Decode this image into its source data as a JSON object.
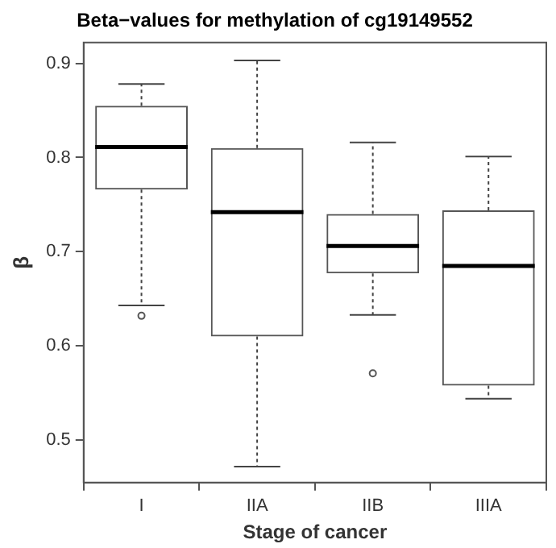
{
  "chart_data": {
    "type": "box",
    "title": "Beta−values for methylation of cg19149552",
    "xlabel": "Stage of cancer",
    "ylabel": "β",
    "categories": [
      "I",
      "IIA",
      "IIB",
      "IIIA"
    ],
    "ylim": [
      0.455,
      0.922
    ],
    "yticks": [
      0.5,
      0.6,
      0.7,
      0.8,
      0.9
    ],
    "grid": false,
    "legend": false,
    "boxes": [
      {
        "low": 0.643,
        "q1": 0.766,
        "median": 0.811,
        "q3": 0.855,
        "high": 0.878,
        "outliers": [
          0.632
        ]
      },
      {
        "low": 0.472,
        "q1": 0.61,
        "median": 0.742,
        "q3": 0.81,
        "high": 0.903
      },
      {
        "low": 0.633,
        "q1": 0.677,
        "median": 0.706,
        "q3": 0.74,
        "high": 0.816,
        "outliers": [
          0.571
        ]
      },
      {
        "low": 0.544,
        "q1": 0.558,
        "median": 0.685,
        "q3": 0.744,
        "high": 0.801
      }
    ]
  }
}
